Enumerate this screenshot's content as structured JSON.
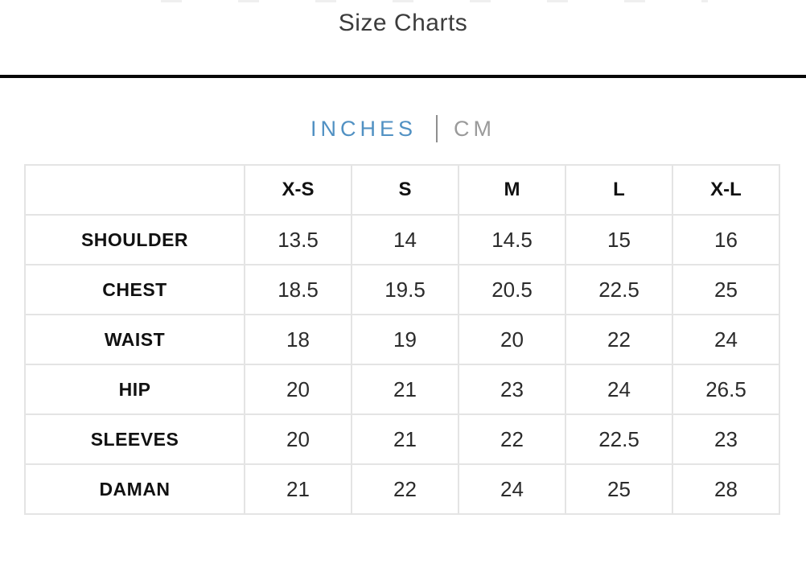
{
  "page": {
    "title": "Size Charts"
  },
  "unit_toggle": {
    "inches_label": "INCHES",
    "cm_label": "CM",
    "active_unit": "INCHES"
  },
  "colors": {
    "accent_blue": "#5191c3",
    "inactive_gray": "#9a9a9a",
    "divider_black": "#070707",
    "table_border": "#e4e4e4",
    "text_dark": "#111111"
  },
  "chart_data": {
    "type": "table",
    "title": "Size Charts",
    "unit": "INCHES",
    "columns": [
      "X-S",
      "S",
      "M",
      "L",
      "X-L"
    ],
    "rows": [
      {
        "label": "SHOULDER",
        "values": [
          "13.5",
          "14",
          "14.5",
          "15",
          "16"
        ]
      },
      {
        "label": "CHEST",
        "values": [
          "18.5",
          "19.5",
          "20.5",
          "22.5",
          "25"
        ]
      },
      {
        "label": "WAIST",
        "values": [
          "18",
          "19",
          "20",
          "22",
          "24"
        ]
      },
      {
        "label": "HIP",
        "values": [
          "20",
          "21",
          "23",
          "24",
          "26.5"
        ]
      },
      {
        "label": "SLEEVES",
        "values": [
          "20",
          "21",
          "22",
          "22.5",
          "23"
        ]
      },
      {
        "label": "DAMAN",
        "values": [
          "21",
          "22",
          "24",
          "25",
          "28"
        ]
      }
    ]
  }
}
